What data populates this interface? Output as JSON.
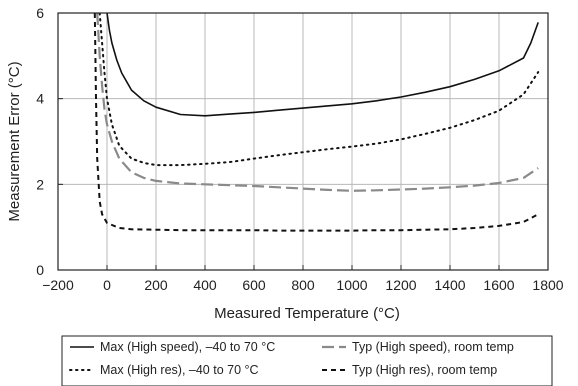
{
  "chart_data": {
    "type": "line",
    "xlabel": "Measured Temperature (°C)",
    "ylabel": "Measurement Error (°C)",
    "xlim": [
      -200,
      1800
    ],
    "ylim": [
      0,
      6
    ],
    "x_ticks": [
      "−200",
      "0",
      "200",
      "400",
      "600",
      "800",
      "1000",
      "1200",
      "1400",
      "1600",
      "1800"
    ],
    "x_tick_values": [
      -200,
      0,
      200,
      400,
      600,
      800,
      1000,
      1200,
      1400,
      1600,
      1800
    ],
    "y_ticks": [
      "0",
      "2",
      "4",
      "6"
    ],
    "y_tick_values": [
      0,
      2,
      4,
      6
    ],
    "grid": true,
    "legend_position": "bottom",
    "series": [
      {
        "name": "Max (High speed), –40 to 70 °C",
        "style": "solid",
        "color": "#111111",
        "x": [
          0,
          10,
          20,
          40,
          60,
          100,
          150,
          200,
          300,
          400,
          500,
          600,
          700,
          800,
          900,
          1000,
          1100,
          1200,
          1300,
          1400,
          1500,
          1600,
          1700,
          1730,
          1760
        ],
        "y": [
          6.0,
          5.6,
          5.3,
          4.9,
          4.6,
          4.2,
          3.95,
          3.8,
          3.63,
          3.6,
          3.64,
          3.68,
          3.73,
          3.78,
          3.83,
          3.88,
          3.95,
          4.04,
          4.15,
          4.28,
          4.45,
          4.65,
          4.95,
          5.3,
          5.78
        ]
      },
      {
        "name": "Typ (High speed), room temp",
        "style": "dashed-long",
        "color": "#8a8a8a",
        "x": [
          -40,
          -30,
          -20,
          -10,
          0,
          20,
          50,
          100,
          150,
          200,
          300,
          400,
          500,
          600,
          700,
          800,
          900,
          1000,
          1100,
          1200,
          1300,
          1400,
          1500,
          1600,
          1700,
          1760
        ],
        "y": [
          6.0,
          5.0,
          4.3,
          3.75,
          3.4,
          3.0,
          2.6,
          2.28,
          2.15,
          2.08,
          2.02,
          2.0,
          1.98,
          1.96,
          1.93,
          1.9,
          1.87,
          1.85,
          1.86,
          1.88,
          1.9,
          1.93,
          1.97,
          2.03,
          2.15,
          2.38
        ]
      },
      {
        "name": "Max (High res), –40 to 70 °C",
        "style": "dotted",
        "color": "#111111",
        "x": [
          -30,
          -20,
          -10,
          0,
          20,
          50,
          100,
          150,
          200,
          300,
          400,
          500,
          600,
          700,
          800,
          900,
          1000,
          1100,
          1200,
          1300,
          1400,
          1500,
          1600,
          1700,
          1760
        ],
        "y": [
          6.0,
          5.3,
          4.6,
          4.0,
          3.4,
          2.9,
          2.6,
          2.5,
          2.45,
          2.45,
          2.48,
          2.52,
          2.6,
          2.68,
          2.75,
          2.82,
          2.88,
          2.95,
          3.05,
          3.18,
          3.32,
          3.5,
          3.72,
          4.1,
          4.62
        ]
      },
      {
        "name": "Typ (High res), room temp",
        "style": "dashed-short",
        "color": "#111111",
        "x": [
          -50,
          -45,
          -40,
          -30,
          -20,
          0,
          50,
          100,
          200,
          300,
          400,
          500,
          600,
          700,
          800,
          900,
          1000,
          1100,
          1200,
          1300,
          1400,
          1500,
          1600,
          1700,
          1760
        ],
        "y": [
          6.0,
          4.0,
          2.6,
          1.6,
          1.3,
          1.1,
          0.98,
          0.95,
          0.94,
          0.93,
          0.93,
          0.93,
          0.93,
          0.92,
          0.92,
          0.92,
          0.92,
          0.93,
          0.93,
          0.94,
          0.95,
          0.98,
          1.03,
          1.12,
          1.3
        ]
      }
    ],
    "legend_order": [
      0,
      1,
      2,
      3
    ]
  }
}
